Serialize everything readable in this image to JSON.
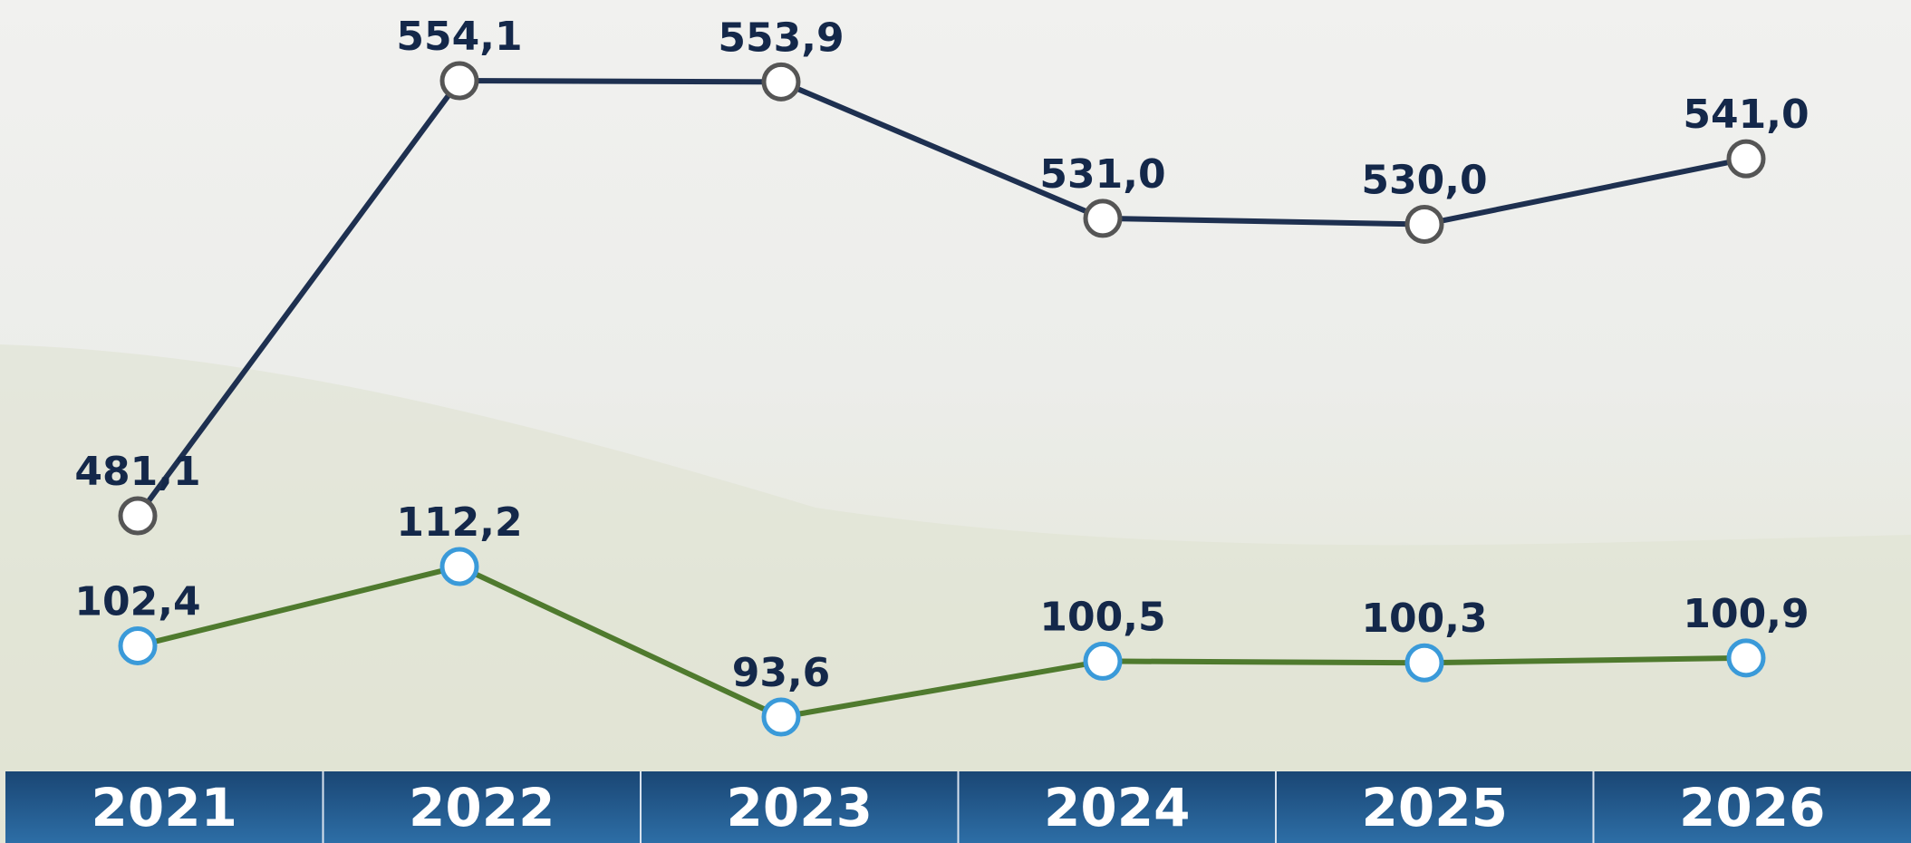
{
  "chart_data": {
    "type": "line",
    "categories": [
      "2021",
      "2022",
      "2023",
      "2024",
      "2025",
      "2026"
    ],
    "series": [
      {
        "values": [
          481.1,
          554.1,
          553.9,
          531.0,
          530.0,
          541.0
        ],
        "value_labels": [
          "481,1",
          "554,1",
          "553,9",
          "531,0",
          "530,0",
          "541,0"
        ],
        "color": "#1e3050",
        "marker_color": "#555555"
      },
      {
        "values": [
          102.4,
          112.2,
          93.6,
          100.5,
          100.3,
          100.9
        ],
        "value_labels": [
          "102,4",
          "112,2",
          "93,6",
          "100,5",
          "100,3",
          "100,9"
        ],
        "color": "#4f7a2e",
        "marker_color": "#3a9ad9"
      }
    ]
  }
}
